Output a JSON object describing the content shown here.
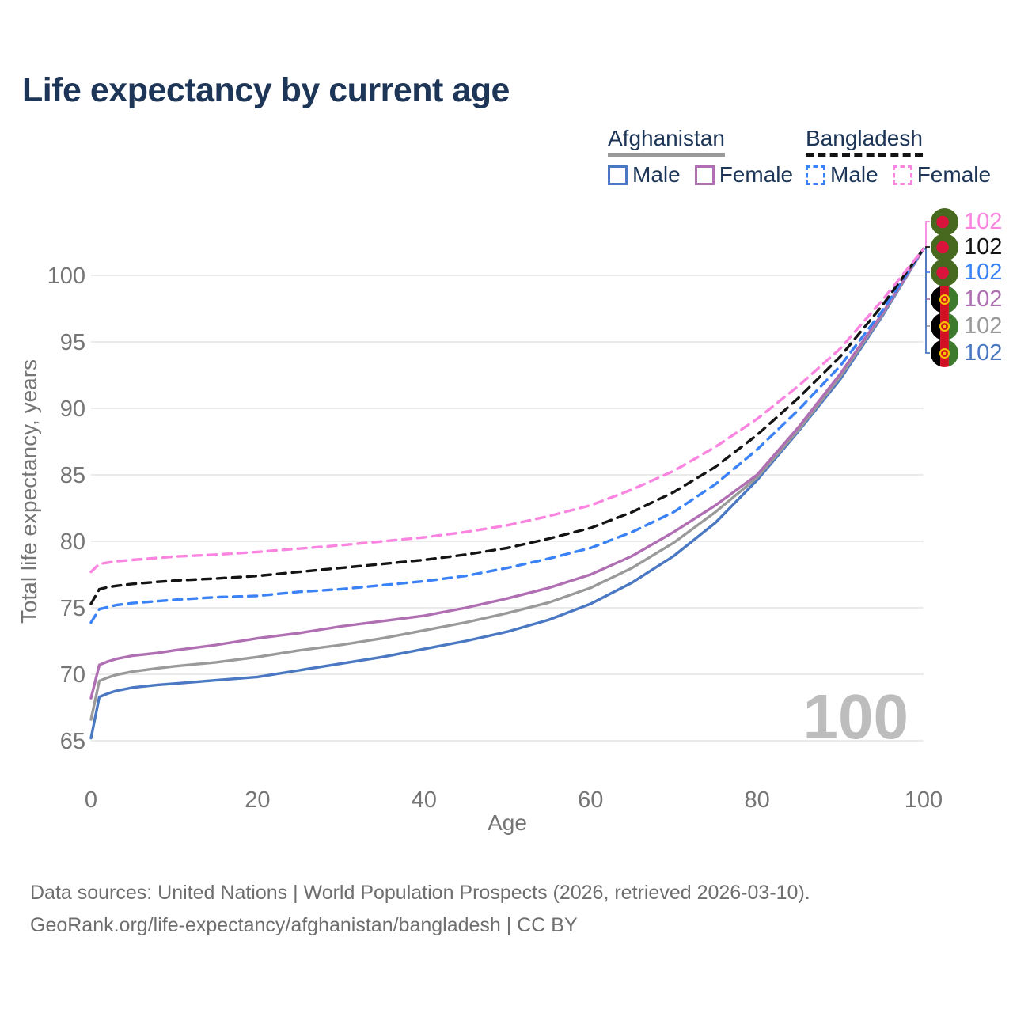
{
  "title": "Life expectancy by current age",
  "watermark": "100",
  "colors": {
    "title_text": "#1d3557",
    "axis_text": "#757575",
    "grid": "#ebebeb",
    "watermark": "#bdbdbd",
    "footer_text": "#6e6e6e",
    "afghanistan_male": "#4a78c2",
    "afghanistan_total": "#9a9a9a",
    "afghanistan_female": "#b06fb3",
    "bangladesh_male": "#3b82f6",
    "bangladesh_total": "#141414",
    "bangladesh_female": "#fa85e0"
  },
  "legend": {
    "groups": [
      {
        "label": "Afghanistan",
        "line_style": "solid",
        "underline_color": "#9a9a9a",
        "items": [
          {
            "label": "Male",
            "swatch_color": "#4a78c2",
            "swatch_style": "solid"
          },
          {
            "label": "Female",
            "swatch_color": "#b06fb3",
            "swatch_style": "solid"
          }
        ]
      },
      {
        "label": "Bangladesh",
        "line_style": "dashed",
        "underline_color": "#141414",
        "items": [
          {
            "label": "Male",
            "swatch_color": "#3b82f6",
            "swatch_style": "dashed"
          },
          {
            "label": "Female",
            "swatch_color": "#fa85e0",
            "swatch_style": "dashed"
          }
        ]
      }
    ]
  },
  "end_labels": [
    {
      "value": "102",
      "color": "#fa85e0",
      "flag": "bangladesh",
      "series": "Bangladesh Female"
    },
    {
      "value": "102",
      "color": "#141414",
      "flag": "bangladesh",
      "series": "Bangladesh"
    },
    {
      "value": "102",
      "color": "#3b82f6",
      "flag": "bangladesh",
      "series": "Bangladesh Male"
    },
    {
      "value": "102",
      "color": "#b06fb3",
      "flag": "afghanistan",
      "series": "Afghanistan Female"
    },
    {
      "value": "102",
      "color": "#9a9a9a",
      "flag": "afghanistan",
      "series": "Afghanistan"
    },
    {
      "value": "102",
      "color": "#4a78c2",
      "flag": "afghanistan",
      "series": "Afghanistan Male"
    }
  ],
  "footer": {
    "line1": "Data sources: United Nations | World Population Prospects (2026, retrieved 2026-03-10).",
    "line2": "GeoRank.org/life-expectancy/afghanistan/bangladesh | CC BY"
  },
  "chart_data": {
    "type": "line",
    "title": "Life expectancy by current age",
    "xlabel": "Age",
    "ylabel": "Total life expectancy, years",
    "xlim": [
      0,
      100
    ],
    "ylim": [
      64,
      103
    ],
    "xticks": [
      0,
      20,
      40,
      60,
      80,
      100
    ],
    "yticks": [
      65,
      70,
      75,
      80,
      85,
      90,
      95,
      100
    ],
    "grid": "horizontal",
    "legend_position": "top-right",
    "x": [
      0,
      1,
      2,
      3,
      5,
      8,
      10,
      15,
      20,
      25,
      30,
      35,
      40,
      45,
      50,
      55,
      60,
      65,
      70,
      75,
      80,
      85,
      90,
      95,
      100
    ],
    "series": [
      {
        "name": "Afghanistan Male",
        "color": "#4a78c2",
        "dashed": false,
        "values": [
          65.2,
          68.3,
          68.55,
          68.75,
          69.0,
          69.2,
          69.3,
          69.55,
          69.8,
          70.3,
          70.8,
          71.3,
          71.9,
          72.5,
          73.2,
          74.1,
          75.3,
          76.9,
          78.9,
          81.4,
          84.6,
          88.3,
          92.2,
          96.9,
          102
        ]
      },
      {
        "name": "Afghanistan",
        "color": "#9a9a9a",
        "dashed": false,
        "values": [
          66.6,
          69.5,
          69.75,
          69.95,
          70.2,
          70.45,
          70.6,
          70.9,
          71.3,
          71.8,
          72.2,
          72.7,
          73.3,
          73.9,
          74.6,
          75.4,
          76.5,
          78.0,
          79.9,
          82.2,
          84.8,
          88.4,
          92.4,
          97.0,
          102
        ]
      },
      {
        "name": "Afghanistan Female",
        "color": "#b06fb3",
        "dashed": false,
        "values": [
          68.2,
          70.7,
          70.95,
          71.15,
          71.4,
          71.6,
          71.8,
          72.2,
          72.7,
          73.1,
          73.6,
          74.0,
          74.4,
          75.0,
          75.7,
          76.5,
          77.5,
          78.9,
          80.7,
          82.7,
          85.0,
          88.6,
          92.6,
          97.1,
          102
        ]
      },
      {
        "name": "Bangladesh Male",
        "color": "#3b82f6",
        "dashed": true,
        "values": [
          73.9,
          74.9,
          75.05,
          75.2,
          75.35,
          75.5,
          75.6,
          75.8,
          75.9,
          76.2,
          76.4,
          76.7,
          77.0,
          77.4,
          78.0,
          78.7,
          79.5,
          80.7,
          82.2,
          84.3,
          86.9,
          89.9,
          93.2,
          97.3,
          102
        ]
      },
      {
        "name": "Bangladesh",
        "color": "#141414",
        "dashed": true,
        "values": [
          75.3,
          76.4,
          76.55,
          76.65,
          76.8,
          76.95,
          77.05,
          77.2,
          77.4,
          77.7,
          78.0,
          78.3,
          78.6,
          79.0,
          79.5,
          80.2,
          81.0,
          82.2,
          83.7,
          85.6,
          88.0,
          90.8,
          93.9,
          97.7,
          102
        ]
      },
      {
        "name": "Bangladesh Female",
        "color": "#fa85e0",
        "dashed": true,
        "values": [
          77.7,
          78.3,
          78.4,
          78.5,
          78.6,
          78.75,
          78.85,
          79.0,
          79.2,
          79.45,
          79.7,
          80.0,
          80.3,
          80.7,
          81.2,
          81.9,
          82.7,
          83.9,
          85.3,
          87.1,
          89.2,
          91.7,
          94.5,
          98.1,
          102
        ]
      }
    ]
  }
}
